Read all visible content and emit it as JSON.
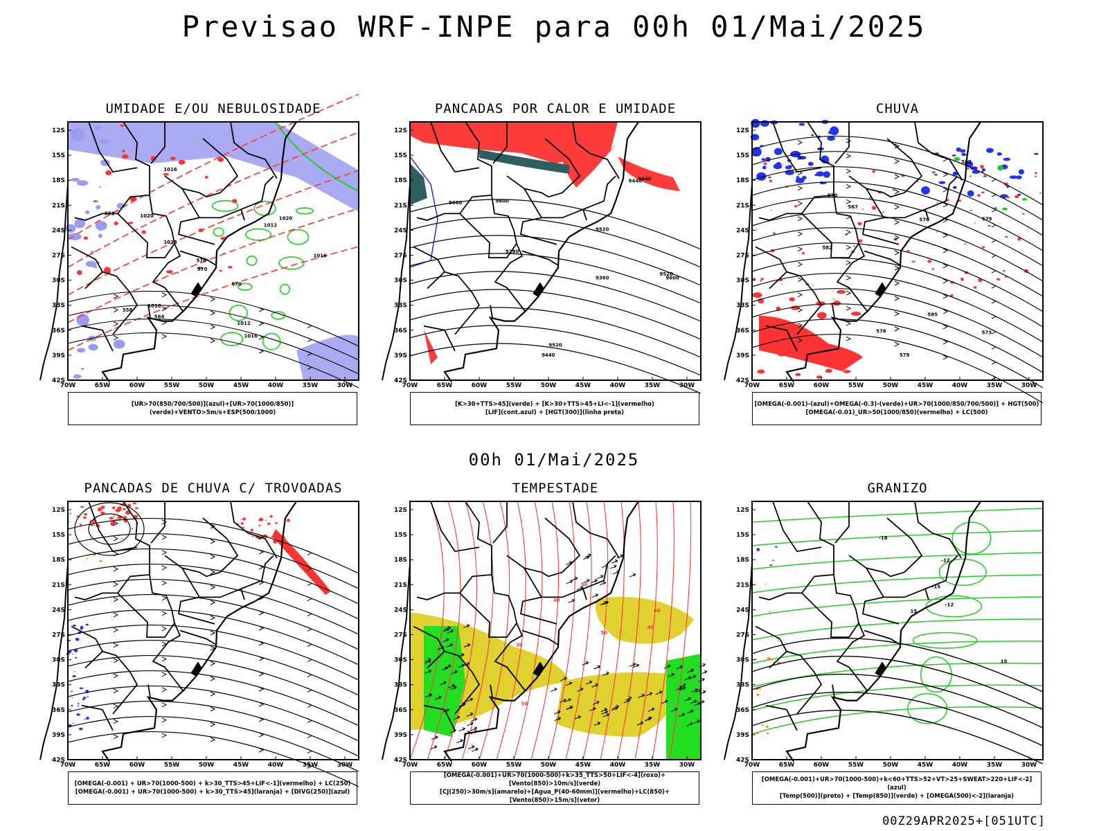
{
  "title": "Previsao WRF-INPE  para 00h 01/Mai/2025",
  "mid_time": "00h 01/Mai/2025",
  "footer": "00Z29APR2025+[051UTC]",
  "lat_ticks": [
    "12S",
    "15S",
    "18S",
    "21S",
    "24S",
    "27S",
    "30S",
    "33S",
    "36S",
    "39S",
    "42S"
  ],
  "lon_ticks": [
    "70W",
    "65W",
    "60W",
    "55W",
    "50W",
    "45W",
    "40W",
    "35W",
    "30W"
  ],
  "panels": [
    {
      "id": "umidade",
      "title": "UMIDADE E/OU NEBULOSIDADE",
      "legend": [
        "[UR>70(850/700/500)](azul)+[UR>70(1000/850)](verde)+VENTO>5m/s+ESP(500/1000)"
      ],
      "colors": {
        "blue": "#9b9bf0",
        "green": "#22cc22",
        "red": "#ff3333"
      },
      "contour_labels": [
        "1016",
        "1016",
        "1016",
        "1020",
        "1020",
        "1012",
        "1016",
        "1016",
        "570",
        "564",
        "558",
        "552",
        "576",
        "570",
        "1012"
      ]
    },
    {
      "id": "pancadas-calor",
      "title": "PANCADAS POR CALOR E UMIDADE",
      "legend": [
        "[K>30+TTS>45](verde) + [K>30+TTS>45+LI<-1](vermelho)",
        "[LIF](cont.azul) + [HGT(300)](linha preta)"
      ],
      "colors": {
        "red": "#ff3b3b",
        "teal": "#2e5e5e",
        "blue": "#1a1aee"
      },
      "contour_labels": [
        "9600",
        "9600",
        "9520",
        "9520",
        "9440",
        "9440",
        "9360",
        "9280",
        "9440",
        "9600",
        "9520"
      ]
    },
    {
      "id": "chuva",
      "title": "CHUVA",
      "legend": [
        "[OMEGA(-0.001)-(azul)+OMEGA(-0.3)-(verde)+UR>70(1000/850/700/500)] + HGT(500)",
        "[OMEGA(-0.01)_UR>50(1000/850)(vermelho) + LC(500)"
      ],
      "colors": {
        "red": "#ff3333",
        "blue": "#2233ee",
        "green": "#22cc22"
      },
      "contour_labels": [
        "585",
        "582",
        "579",
        "576",
        "573",
        "570",
        "567",
        "582",
        "579",
        "576"
      ]
    },
    {
      "id": "pancadas-trovoadas",
      "title": "PANCADAS DE CHUVA C/ TROVOADAS",
      "legend": [
        "[OMEGA(-0.001) + UR>70(1000-500) + k>30_TTS>45+LIF<-1](vermelho) + LC(250)",
        "[OMEGA(-0.001) + UR>70(1000-500) + k>30_TTS>45](laranja) + [DIVG(250)](azul)"
      ],
      "colors": {
        "red": "#ff3333",
        "blue": "#2233ee",
        "orange": "#ff9900"
      },
      "contour_labels": []
    },
    {
      "id": "tempestade",
      "title": "TEMPESTADE",
      "legend": [
        "[OMEGA(-0.001)+UR>70(1000-500)+k>35_TTS>50+LIF<-4](roxo)+[Vento(850)>10m/s](verde)",
        "[CJ(250)>30m/s](amarelo)+[Agua_P(40-60mm)](vermelho)+LC(850)+[Vento(850)>15m/s](vetor)"
      ],
      "colors": {
        "yellow": "#e0d030",
        "green": "#22dd22",
        "red": "#ff3b3b"
      },
      "contour_labels": [
        "50",
        "40",
        "40",
        "40",
        "30",
        "50",
        "50"
      ]
    },
    {
      "id": "granizo",
      "title": "GRANIZO",
      "legend": [
        "[OMEGA(-0.001)+UR>70(1000-500)+k<60+TTS>52+VT>25+SWEAT>220+LIF<-2](azul)",
        "[Temp(500)](preto) + [Temp(850)](verde) + [OMEGA(500)<-2](laranja)"
      ],
      "colors": {
        "green": "#22cc22",
        "orange": "#ff8800",
        "blue": "#2233ee"
      },
      "contour_labels": [
        "-12",
        "-15",
        "-18",
        "-12",
        "15",
        "15"
      ]
    }
  ]
}
